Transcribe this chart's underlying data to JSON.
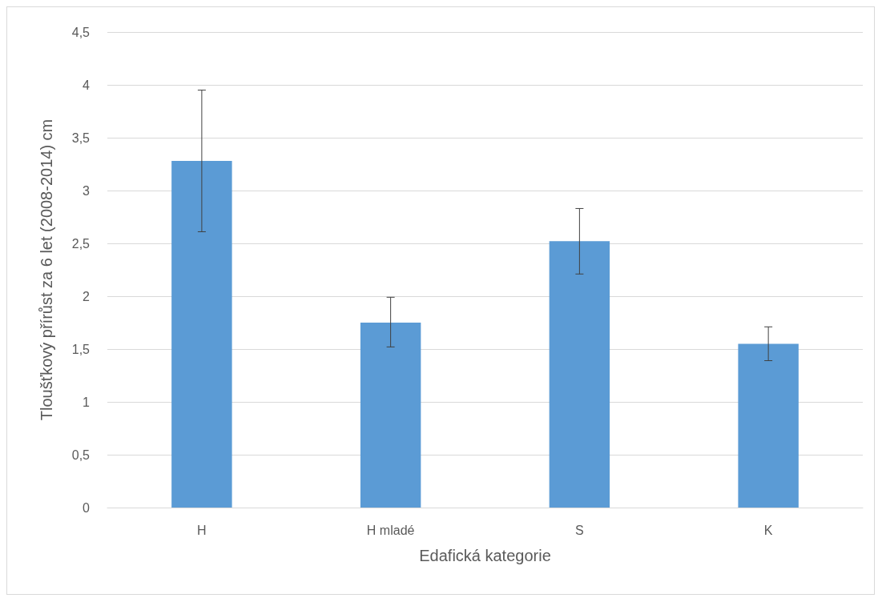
{
  "chart_data": {
    "type": "bar",
    "xlabel": "Edafická kategorie",
    "ylabel": "Tloušťkový přírůst za 6 let (2008-2014) cm",
    "categories": [
      "H",
      "H mladé",
      "S",
      "K"
    ],
    "series": [
      {
        "color": "#5b9bd5",
        "values": [
          3.28,
          1.75,
          2.52,
          1.55
        ],
        "errors": [
          [
            2.61,
            3.95
          ],
          [
            1.52,
            1.99
          ],
          [
            2.21,
            2.83
          ],
          [
            1.39,
            1.71
          ]
        ]
      }
    ],
    "ylim": [
      0,
      4.5
    ],
    "yticks": [
      0,
      {
        "value": 0.5,
        "label": "0,5"
      },
      1,
      {
        "value": 1.5,
        "label": "1,5"
      },
      2,
      {
        "value": 2.5,
        "label": "2,5"
      },
      3,
      {
        "value": 3.5,
        "label": "3,5"
      },
      4,
      {
        "value": 4.5,
        "label": "4,5"
      }
    ],
    "grid": "y"
  }
}
